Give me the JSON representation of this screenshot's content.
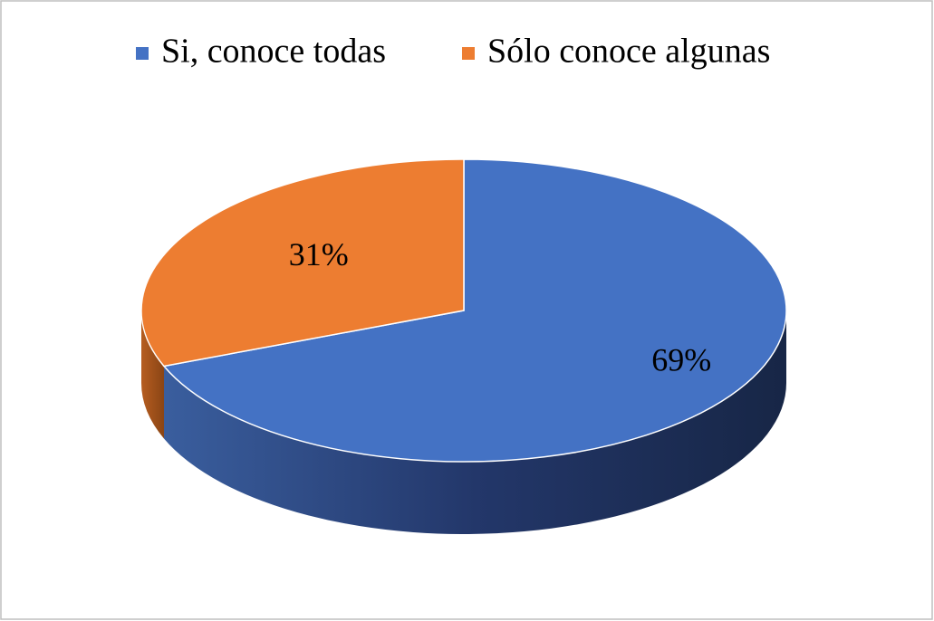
{
  "chart_data": {
    "type": "pie3d",
    "categories": [
      "Si, conoce todas",
      "Sólo conoce algunas"
    ],
    "values": [
      69,
      31
    ],
    "value_labels": [
      "69%",
      "31%"
    ],
    "colors": [
      "#4472c4",
      "#ed7d31"
    ],
    "legend": "top"
  }
}
